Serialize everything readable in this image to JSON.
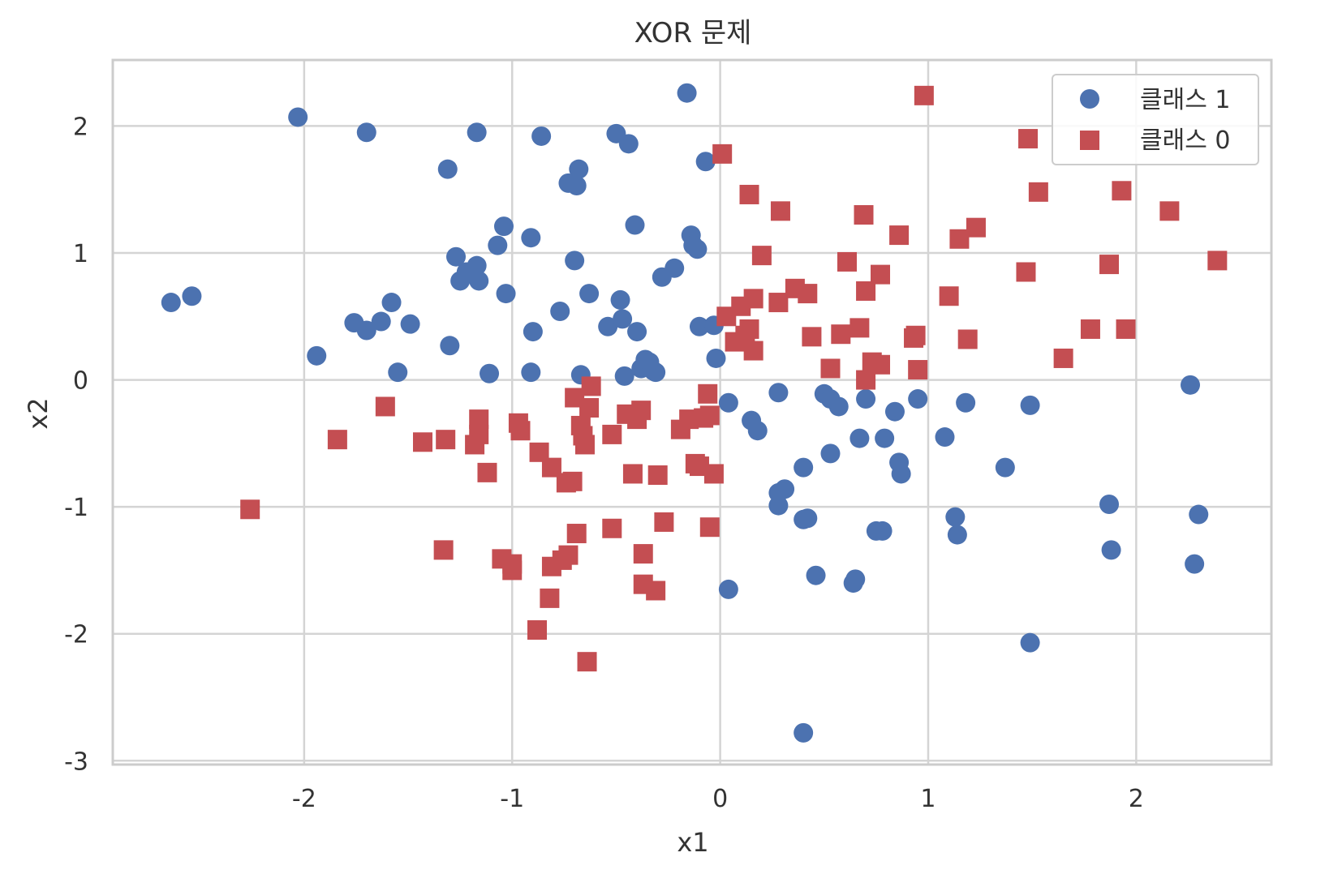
{
  "chart_data": {
    "type": "scatter",
    "title": "XOR 문제",
    "xlabel": "x1",
    "ylabel": "x2",
    "xlim": [
      -2.92,
      2.65
    ],
    "ylim": [
      -3.03,
      2.52
    ],
    "xticks": [
      -2,
      -1,
      0,
      1,
      2
    ],
    "yticks": [
      -3,
      -2,
      -1,
      0,
      1,
      2
    ],
    "xtick_labels": [
      "-2",
      "-1",
      "0",
      "1",
      "2"
    ],
    "ytick_labels": [
      "-3",
      "-2",
      "-1",
      "0",
      "1",
      "2"
    ],
    "grid": true,
    "legend_position": "top-right",
    "series": [
      {
        "name": "클래스 1",
        "marker": "circle",
        "color": "#4c72b0",
        "points": [
          [
            -2.64,
            0.61
          ],
          [
            -2.54,
            0.66
          ],
          [
            -2.03,
            2.07
          ],
          [
            -1.94,
            0.19
          ],
          [
            -1.76,
            0.45
          ],
          [
            -1.7,
            0.39
          ],
          [
            -1.7,
            1.95
          ],
          [
            -1.63,
            0.46
          ],
          [
            -1.58,
            0.61
          ],
          [
            -1.55,
            0.06
          ],
          [
            -1.49,
            0.44
          ],
          [
            -1.31,
            1.66
          ],
          [
            -1.3,
            0.27
          ],
          [
            -1.27,
            0.97
          ],
          [
            -1.25,
            0.78
          ],
          [
            -1.22,
            0.85
          ],
          [
            -1.17,
            0.9
          ],
          [
            -1.16,
            0.78
          ],
          [
            -1.17,
            1.95
          ],
          [
            -1.11,
            0.05
          ],
          [
            -1.07,
            1.06
          ],
          [
            -1.04,
            1.21
          ],
          [
            -1.03,
            0.68
          ],
          [
            -0.91,
            1.12
          ],
          [
            -0.9,
            0.38
          ],
          [
            -0.91,
            0.06
          ],
          [
            -0.86,
            1.92
          ],
          [
            -0.77,
            0.54
          ],
          [
            -0.73,
            1.55
          ],
          [
            -0.7,
            0.94
          ],
          [
            -0.69,
            1.53
          ],
          [
            -0.68,
            1.66
          ],
          [
            -0.67,
            0.04
          ],
          [
            -0.63,
            0.68
          ],
          [
            -0.54,
            0.42
          ],
          [
            -0.5,
            1.94
          ],
          [
            -0.48,
            0.63
          ],
          [
            -0.47,
            0.48
          ],
          [
            -0.46,
            0.03
          ],
          [
            -0.44,
            1.86
          ],
          [
            -0.41,
            1.22
          ],
          [
            -0.4,
            0.38
          ],
          [
            -0.38,
            0.09
          ],
          [
            -0.36,
            0.16
          ],
          [
            -0.34,
            0.14
          ],
          [
            -0.32,
            0.07
          ],
          [
            -0.31,
            0.06
          ],
          [
            -0.28,
            0.81
          ],
          [
            -0.22,
            0.88
          ],
          [
            -0.16,
            2.26
          ],
          [
            -0.14,
            1.14
          ],
          [
            -0.13,
            1.06
          ],
          [
            -0.11,
            1.03
          ],
          [
            -0.1,
            0.42
          ],
          [
            -0.07,
            1.72
          ],
          [
            -0.03,
            0.43
          ],
          [
            -0.02,
            0.17
          ],
          [
            0.04,
            -0.18
          ],
          [
            0.04,
            -1.65
          ],
          [
            0.15,
            -0.32
          ],
          [
            0.18,
            -0.4
          ],
          [
            0.28,
            -0.1
          ],
          [
            0.28,
            -0.89
          ],
          [
            0.28,
            -0.99
          ],
          [
            0.31,
            -0.86
          ],
          [
            0.4,
            -1.1
          ],
          [
            0.4,
            -0.69
          ],
          [
            0.4,
            -2.78
          ],
          [
            0.42,
            -1.09
          ],
          [
            0.46,
            -1.54
          ],
          [
            0.5,
            -0.11
          ],
          [
            0.53,
            -0.15
          ],
          [
            0.53,
            -0.58
          ],
          [
            0.57,
            -0.21
          ],
          [
            0.64,
            -1.6
          ],
          [
            0.65,
            -1.57
          ],
          [
            0.67,
            -0.46
          ],
          [
            0.7,
            -0.15
          ],
          [
            0.75,
            -1.19
          ],
          [
            0.78,
            -1.19
          ],
          [
            0.79,
            -0.46
          ],
          [
            0.84,
            -0.25
          ],
          [
            0.86,
            -0.65
          ],
          [
            0.87,
            -0.74
          ],
          [
            0.95,
            -0.15
          ],
          [
            1.08,
            -0.45
          ],
          [
            1.13,
            -1.08
          ],
          [
            1.14,
            -1.22
          ],
          [
            1.18,
            -0.18
          ],
          [
            1.37,
            -0.69
          ],
          [
            1.49,
            -0.2
          ],
          [
            1.49,
            -2.07
          ],
          [
            1.87,
            -0.98
          ],
          [
            1.88,
            -1.34
          ],
          [
            2.26,
            -0.04
          ],
          [
            2.28,
            -1.45
          ],
          [
            2.3,
            -1.06
          ]
        ]
      },
      {
        "name": "클래스 0",
        "marker": "square",
        "color": "#c44e52",
        "points": [
          [
            -2.26,
            -1.02
          ],
          [
            -1.84,
            -0.47
          ],
          [
            -1.61,
            -0.21
          ],
          [
            -1.43,
            -0.49
          ],
          [
            -1.32,
            -0.47
          ],
          [
            -1.33,
            -1.34
          ],
          [
            -1.16,
            -0.31
          ],
          [
            -1.16,
            -0.43
          ],
          [
            -1.18,
            -0.51
          ],
          [
            -1.12,
            -0.73
          ],
          [
            -1.05,
            -1.41
          ],
          [
            -1.0,
            -1.5
          ],
          [
            -1.0,
            -1.45
          ],
          [
            -0.97,
            -0.34
          ],
          [
            -0.96,
            -0.4
          ],
          [
            -0.88,
            -1.97
          ],
          [
            -0.87,
            -0.57
          ],
          [
            -0.81,
            -0.69
          ],
          [
            -0.81,
            -1.47
          ],
          [
            -0.82,
            -1.72
          ],
          [
            -0.76,
            -1.42
          ],
          [
            -0.73,
            -1.38
          ],
          [
            -0.74,
            -0.81
          ],
          [
            -0.71,
            -0.8
          ],
          [
            -0.69,
            -1.21
          ],
          [
            -0.7,
            -0.14
          ],
          [
            -0.67,
            -0.36
          ],
          [
            -0.66,
            -0.44
          ],
          [
            -0.65,
            -0.51
          ],
          [
            -0.64,
            -2.22
          ],
          [
            -0.63,
            -0.22
          ],
          [
            -0.62,
            -0.05
          ],
          [
            -0.52,
            -0.43
          ],
          [
            -0.52,
            -1.17
          ],
          [
            -0.45,
            -0.27
          ],
          [
            -0.42,
            -0.74
          ],
          [
            -0.4,
            -0.31
          ],
          [
            -0.38,
            -0.24
          ],
          [
            -0.37,
            -1.37
          ],
          [
            -0.37,
            -1.61
          ],
          [
            -0.31,
            -1.66
          ],
          [
            -0.3,
            -0.75
          ],
          [
            -0.27,
            -1.12
          ],
          [
            -0.19,
            -0.39
          ],
          [
            -0.15,
            -0.31
          ],
          [
            -0.12,
            -0.66
          ],
          [
            -0.1,
            -0.68
          ],
          [
            -0.08,
            -0.3
          ],
          [
            -0.06,
            -0.11
          ],
          [
            -0.05,
            -0.28
          ],
          [
            -0.05,
            -1.16
          ],
          [
            -0.03,
            -0.74
          ],
          [
            0.01,
            1.78
          ],
          [
            0.03,
            0.5
          ],
          [
            0.07,
            0.3
          ],
          [
            0.1,
            0.58
          ],
          [
            0.12,
            0.35
          ],
          [
            0.14,
            0.4
          ],
          [
            0.14,
            1.46
          ],
          [
            0.16,
            0.23
          ],
          [
            0.16,
            0.64
          ],
          [
            0.2,
            0.98
          ],
          [
            0.28,
            0.61
          ],
          [
            0.29,
            1.33
          ],
          [
            0.36,
            0.72
          ],
          [
            0.42,
            0.68
          ],
          [
            0.44,
            0.34
          ],
          [
            0.53,
            0.09
          ],
          [
            0.58,
            0.36
          ],
          [
            0.61,
            0.93
          ],
          [
            0.67,
            0.41
          ],
          [
            0.69,
            1.3
          ],
          [
            0.7,
            0.7
          ],
          [
            0.7,
            0.0
          ],
          [
            0.73,
            0.14
          ],
          [
            0.77,
            0.12
          ],
          [
            0.77,
            0.83
          ],
          [
            0.86,
            1.14
          ],
          [
            0.93,
            0.33
          ],
          [
            0.94,
            0.35
          ],
          [
            0.95,
            0.08
          ],
          [
            0.98,
            2.24
          ],
          [
            1.1,
            0.66
          ],
          [
            1.15,
            1.11
          ],
          [
            1.19,
            0.32
          ],
          [
            1.23,
            1.2
          ],
          [
            1.47,
            0.85
          ],
          [
            1.48,
            1.9
          ],
          [
            1.53,
            1.48
          ],
          [
            1.65,
            0.17
          ],
          [
            1.78,
            0.4
          ],
          [
            1.87,
            0.91
          ],
          [
            1.93,
            1.49
          ],
          [
            1.95,
            0.4
          ],
          [
            2.16,
            1.33
          ],
          [
            2.39,
            0.94
          ]
        ]
      }
    ]
  }
}
